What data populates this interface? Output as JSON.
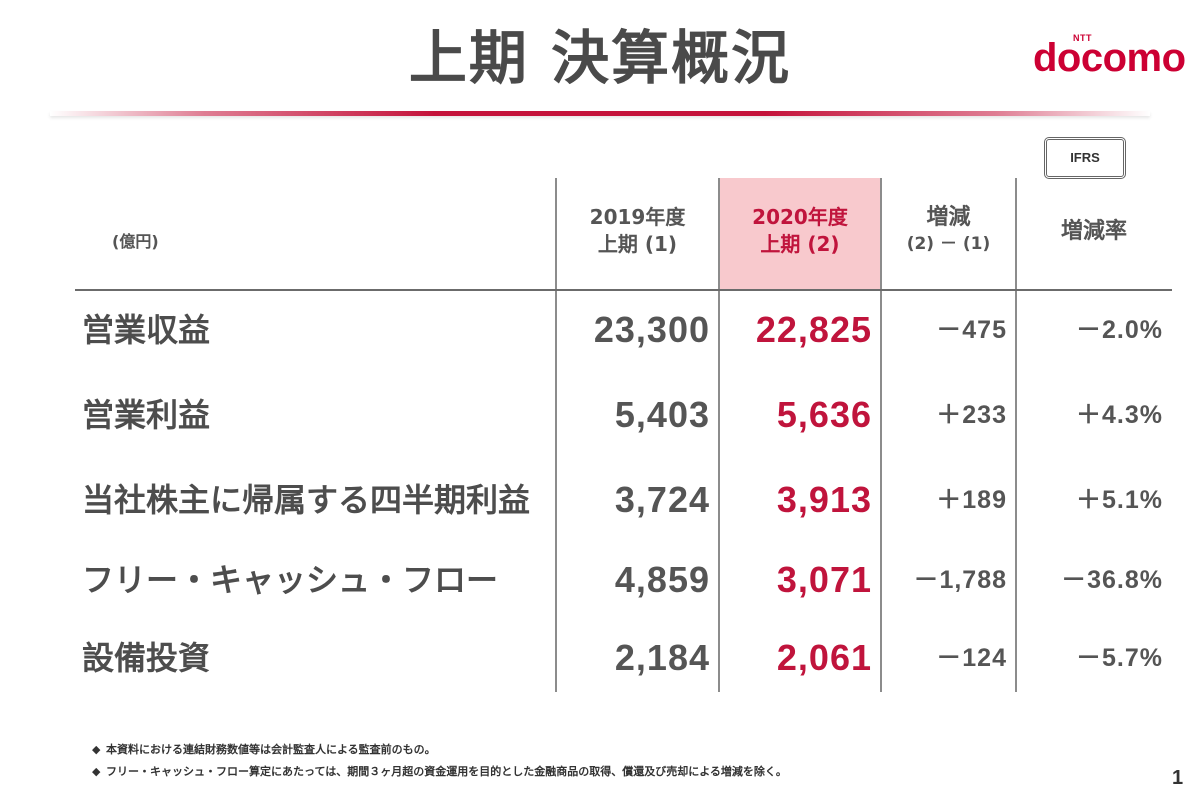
{
  "slide": {
    "title": "上期 決算概況",
    "page_number": "1"
  },
  "logo": {
    "small": "NTT",
    "main": "docomo"
  },
  "badge": {
    "label": "IFRS"
  },
  "table": {
    "unit": "(億円)",
    "columns": [
      {
        "line1": "2019年度",
        "line2": "上期 (1)"
      },
      {
        "line1": "2020年度",
        "line2": "上期 (2)",
        "highlight": true
      },
      {
        "line1": "増減",
        "line2": "(2) － (1)"
      },
      {
        "line1": "増減率"
      }
    ],
    "rows": [
      {
        "label": "営業収益",
        "values": [
          "23,300",
          "22,825",
          "－475",
          "－2.0%"
        ]
      },
      {
        "label": "営業利益",
        "values": [
          "5,403",
          "5,636",
          "＋233",
          "＋4.3%"
        ]
      },
      {
        "label": "当社株主に帰属する四半期利益",
        "values": [
          "3,724",
          "3,913",
          "＋189",
          "＋5.1%"
        ]
      },
      {
        "label": "フリー・キャッシュ・フロー",
        "values": [
          "4,859",
          "3,071",
          "－1,788",
          "－36.8%"
        ]
      },
      {
        "label": "設備投資",
        "values": [
          "2,184",
          "2,061",
          "－124",
          "－5.7%"
        ]
      }
    ]
  },
  "footnotes": {
    "bullet": "◆",
    "items": [
      "本資料における連結財務数値等は会計監査人による監査前のもの。",
      "フリー・キャッシュ・フロー算定にあたっては、期間３ヶ月超の資金運用を目的とした金融商品の取得、償還及び売却による増減を除く。"
    ]
  },
  "colors": {
    "brand_red": "#cc0033",
    "accent_values": "#c0143c",
    "highlight_column": "#f8c9cd",
    "text": "#4d4d4d"
  }
}
